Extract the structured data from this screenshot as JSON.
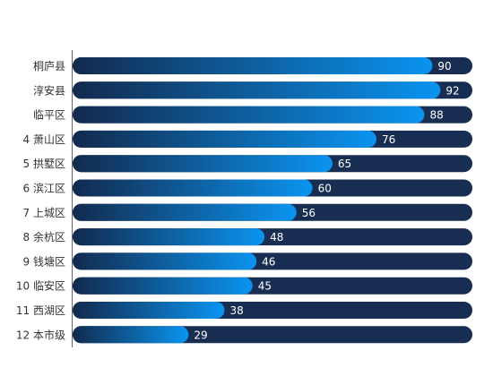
{
  "chart_data": {
    "type": "bar",
    "orientation": "horizontal",
    "title": "",
    "xlabel": "",
    "ylabel": "",
    "xlim": [
      0,
      100
    ],
    "grid": false,
    "legend": "none",
    "categories": [
      "桐庐县",
      "淳安县",
      "临平区",
      "4 萧山区",
      "5 拱墅区",
      "6 滨江区",
      "7 上城区",
      "8 余杭区",
      "9 钱塘区",
      "10 临安区",
      "11 西湖区",
      "12 本市级"
    ],
    "values": [
      90,
      92,
      88,
      76,
      65,
      60,
      56,
      48,
      46,
      45,
      38,
      29
    ],
    "colors": {
      "track": "#172d52",
      "bar_start": "#122a4e",
      "bar_end": "#0a94f0",
      "value_label": "#ffffff",
      "category_label": "#333333",
      "axis_line": "#666666"
    }
  }
}
